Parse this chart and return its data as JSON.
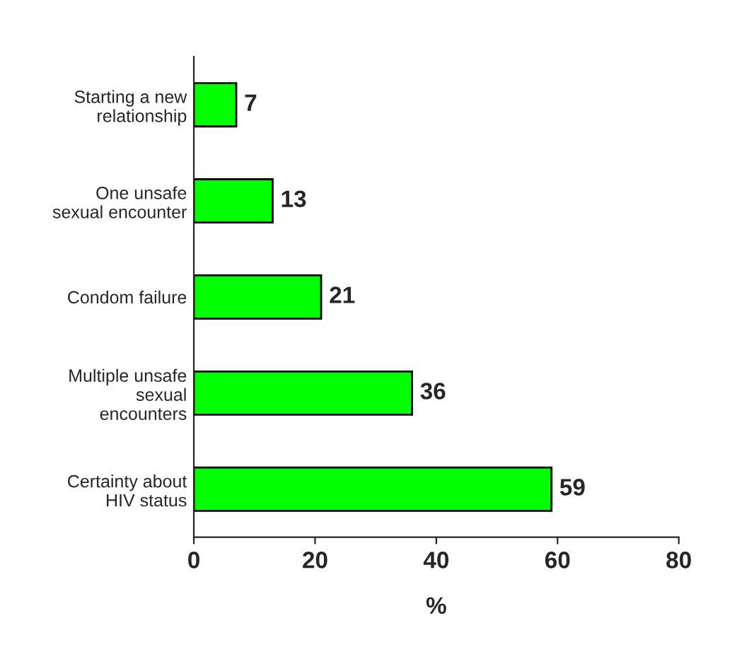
{
  "chart_data": {
    "type": "bar",
    "orientation": "horizontal",
    "categories": [
      "Starting a new\nrelationship",
      "One unsafe\nsexual encounter",
      "Condom failure",
      "Multiple unsafe\nsexual\nencounters",
      "Certainty about\nHIV status"
    ],
    "values": [
      7,
      13,
      21,
      36,
      59
    ],
    "color": "#00ff00",
    "xlabel": "%",
    "xlim": [
      0,
      80
    ],
    "xticks": [
      0,
      20,
      40,
      60,
      80
    ],
    "data_labels": true,
    "grid": false,
    "legend": false
  }
}
